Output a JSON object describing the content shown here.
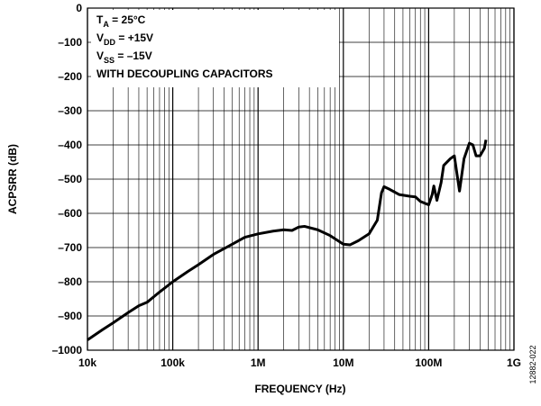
{
  "chart_data": {
    "type": "line",
    "x_scale": "log",
    "grid": true,
    "minor_grid": true,
    "x_label": "FREQUENCY (Hz)",
    "y_label": "ACPSRR (dB)",
    "figure_id": "12882-022",
    "annotations": [
      {
        "main": "T",
        "sub": "A",
        "rest": " = 25°C"
      },
      {
        "main": "V",
        "sub": "DD",
        "rest": " = +15V"
      },
      {
        "main": "V",
        "sub": "SS",
        "rest": " = –15V"
      },
      {
        "main": "WITH DECOUPLING CAPACITORS"
      }
    ],
    "xlim": [
      10000,
      1000000000
    ],
    "xticks": [
      {
        "value": 10000,
        "label": "10k"
      },
      {
        "value": 100000,
        "label": "100k"
      },
      {
        "value": 1000000,
        "label": "1M"
      },
      {
        "value": 10000000,
        "label": "10M"
      },
      {
        "value": 100000000,
        "label": "100M"
      },
      {
        "value": 1000000000,
        "label": "1G"
      }
    ],
    "ylim": [
      -1000,
      0
    ],
    "yticks": [
      0,
      {
        "value": -100,
        "label": "–100"
      },
      {
        "value": -200,
        "label": "–200"
      },
      {
        "value": -300,
        "label": "–300"
      },
      {
        "value": -400,
        "label": "–400"
      },
      {
        "value": -500,
        "label": "–500"
      },
      {
        "value": -600,
        "label": "–600"
      },
      {
        "value": -700,
        "label": "–700"
      },
      {
        "value": -800,
        "label": "–800"
      },
      {
        "value": -900,
        "label": "–900"
      },
      {
        "value": -1000,
        "label": "–1000"
      }
    ],
    "series": [
      {
        "color": "#000000",
        "x": [
          10000,
          15000,
          20000,
          30000,
          40000,
          50000,
          70000,
          100000,
          150000,
          200000,
          300000,
          500000,
          700000,
          1000000,
          1500000,
          2000000,
          2500000,
          3000000,
          3500000,
          5000000,
          7000000,
          10000000,
          12000000,
          15000000,
          20000000,
          25000000,
          28000000,
          30000000,
          35000000,
          45000000,
          60000000,
          70000000,
          80000000,
          100000000,
          110000000,
          115000000,
          125000000,
          140000000,
          150000000,
          180000000,
          200000000,
          230000000,
          260000000,
          300000000,
          330000000,
          360000000,
          400000000,
          450000000,
          470000000
        ],
        "values": [
          -970,
          -940,
          -920,
          -890,
          -870,
          -860,
          -830,
          -800,
          -770,
          -750,
          -720,
          -690,
          -670,
          -660,
          -652,
          -648,
          -650,
          -640,
          -638,
          -648,
          -665,
          -690,
          -692,
          -680,
          -660,
          -620,
          -540,
          -522,
          -530,
          -545,
          -550,
          -552,
          -565,
          -575,
          -545,
          -520,
          -562,
          -510,
          -460,
          -440,
          -432,
          -535,
          -440,
          -395,
          -400,
          -432,
          -432,
          -410,
          -385
        ]
      }
    ]
  }
}
